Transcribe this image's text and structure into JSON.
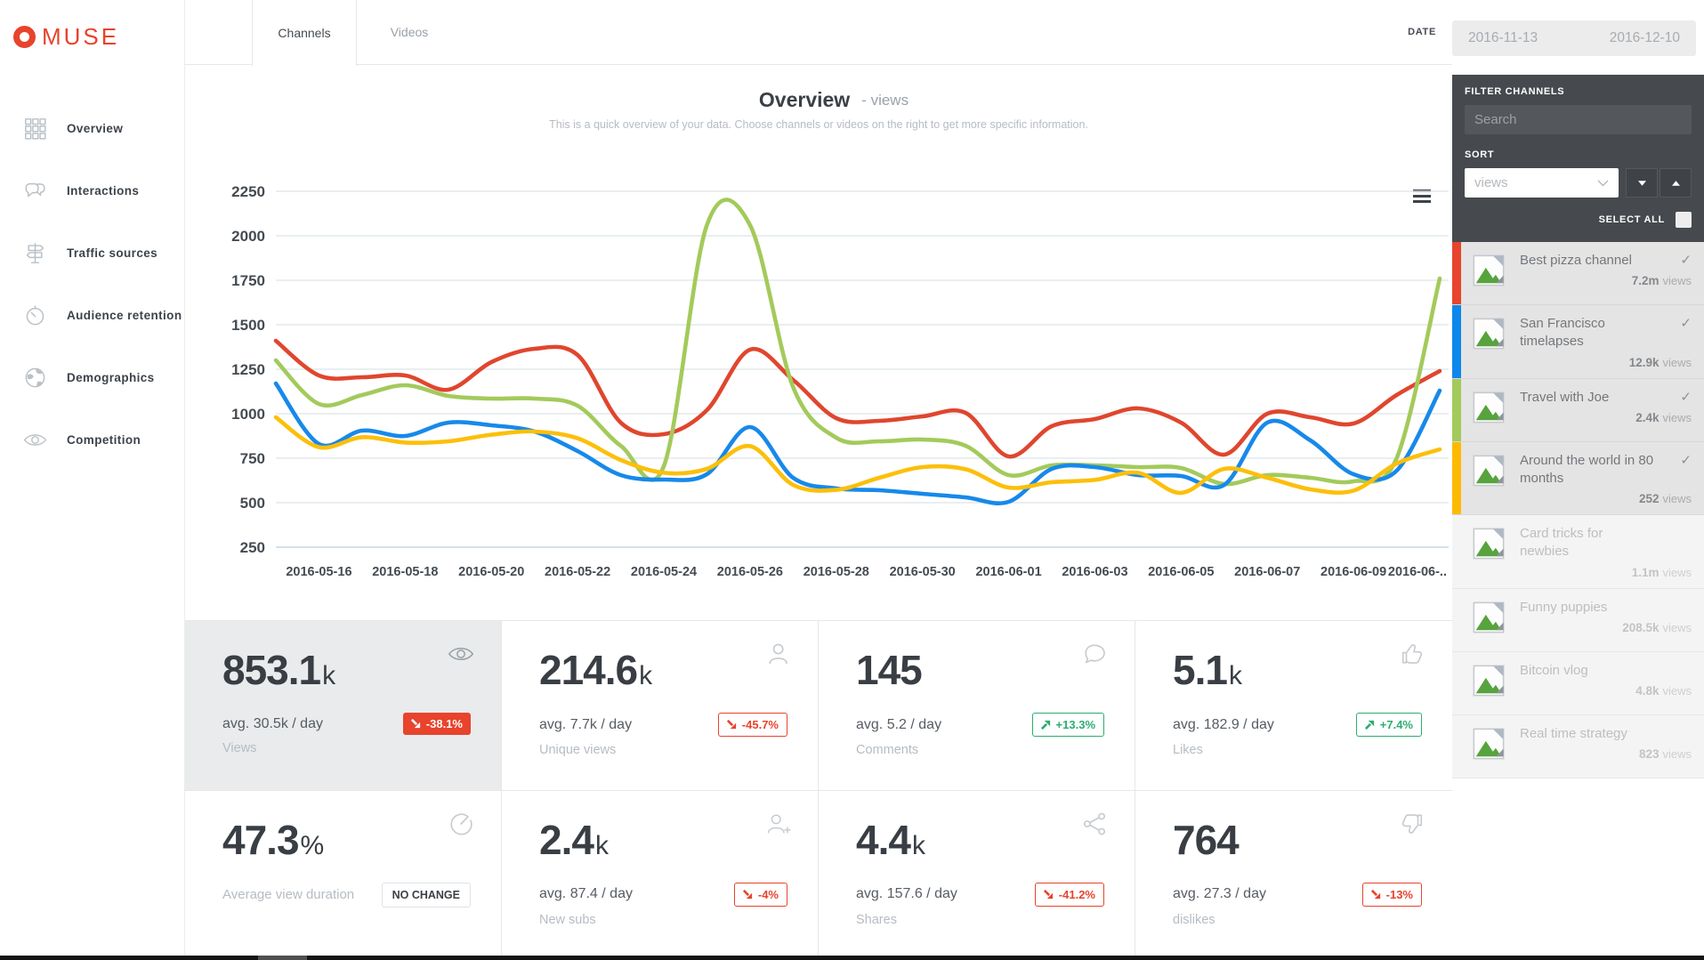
{
  "brand": {
    "name": "MUSE",
    "color": "#e8432d"
  },
  "sidebar": {
    "items": [
      {
        "label": "Overview",
        "icon": "grid-icon"
      },
      {
        "label": "Interactions",
        "icon": "chat-icon"
      },
      {
        "label": "Traffic sources",
        "icon": "signpost-icon"
      },
      {
        "label": "Audience retention",
        "icon": "timer-icon"
      },
      {
        "label": "Demographics",
        "icon": "globe-icon"
      },
      {
        "label": "Competition",
        "icon": "eye-icon"
      }
    ]
  },
  "topbar": {
    "tabs": [
      {
        "label": "Channels",
        "active": true
      },
      {
        "label": "Videos",
        "active": false
      }
    ],
    "date_label": "DATE"
  },
  "date_range": {
    "start": "2016-11-13",
    "end": "2016-12-10"
  },
  "filter_panel": {
    "title": "FILTER CHANNELS",
    "search_placeholder": "Search",
    "search_value": "",
    "sort_label": "SORT",
    "sort_value": "views",
    "select_all": "SELECT ALL"
  },
  "channels": [
    {
      "name": "Best pizza channel",
      "views": "7.2m",
      "unit": "views",
      "color": "#e8432d",
      "selected": true
    },
    {
      "name": "San Francisco timelapses",
      "views": "12.9k",
      "unit": "views",
      "color": "#0d87ec",
      "selected": true
    },
    {
      "name": "Travel with Joe",
      "views": "2.4k",
      "unit": "views",
      "color": "#a3ca5b",
      "selected": true
    },
    {
      "name": "Around the world in 80 months",
      "views": "252",
      "unit": "views",
      "color": "#fdba02",
      "selected": true
    },
    {
      "name": "Card tricks for newbies",
      "views": "1.1m",
      "unit": "views",
      "color": null,
      "selected": false
    },
    {
      "name": "Funny puppies",
      "views": "208.5k",
      "unit": "views",
      "color": null,
      "selected": false
    },
    {
      "name": "Bitcoin vlog",
      "views": "4.8k",
      "unit": "views",
      "color": null,
      "selected": false
    },
    {
      "name": "Real time strategy",
      "views": "823",
      "unit": "views",
      "color": null,
      "selected": false
    }
  ],
  "overview": {
    "title": "Overview",
    "metric": "- views",
    "description": "This is a quick overview of your data. Choose channels or videos on the right to get more specific information."
  },
  "chart_data": {
    "type": "line",
    "title": "Overview - views",
    "xlabel": "",
    "ylabel": "",
    "ylim": [
      250,
      2250
    ],
    "yticks": [
      2250,
      2000,
      1750,
      1500,
      1250,
      1000,
      750,
      500,
      250
    ],
    "grid": true,
    "legend": "none",
    "x": [
      "2016-05-15",
      "2016-05-16",
      "2016-05-17",
      "2016-05-18",
      "2016-05-19",
      "2016-05-20",
      "2016-05-21",
      "2016-05-22",
      "2016-05-23",
      "2016-05-24",
      "2016-05-25",
      "2016-05-26",
      "2016-05-27",
      "2016-05-28",
      "2016-05-29",
      "2016-05-30",
      "2016-05-31",
      "2016-06-01",
      "2016-06-02",
      "2016-06-03",
      "2016-06-04",
      "2016-06-05",
      "2016-06-06",
      "2016-06-07",
      "2016-06-08",
      "2016-06-09",
      "2016-06-10",
      "2016-06-11"
    ],
    "x_tick_labels": [
      "2016-05-16",
      "2016-05-18",
      "2016-05-20",
      "2016-05-22",
      "2016-05-24",
      "2016-05-26",
      "2016-05-28",
      "2016-05-30",
      "2016-06-01",
      "2016-06-03",
      "2016-06-05",
      "2016-06-07",
      "2016-06-09",
      "2016-06-.."
    ],
    "series": [
      {
        "name": "Best pizza channel",
        "color": "#e0462e",
        "values": [
          1410,
          1215,
          1205,
          1215,
          1135,
          1290,
          1365,
          1330,
          950,
          885,
          1020,
          1360,
          1190,
          975,
          960,
          985,
          1005,
          760,
          930,
          970,
          1030,
          950,
          770,
          1000,
          980,
          945,
          1105,
          1240
        ]
      },
      {
        "name": "Travel with Joe",
        "color": "#a3ca5b",
        "values": [
          1300,
          1055,
          1105,
          1160,
          1100,
          1085,
          1085,
          1045,
          820,
          705,
          2060,
          2060,
          1150,
          865,
          845,
          855,
          820,
          655,
          710,
          710,
          700,
          695,
          605,
          655,
          640,
          620,
          750,
          1760
        ]
      },
      {
        "name": "San Francisco timelapses",
        "color": "#1789ea",
        "values": [
          1170,
          830,
          905,
          875,
          950,
          935,
          900,
          790,
          655,
          630,
          660,
          925,
          640,
          580,
          570,
          550,
          530,
          505,
          690,
          700,
          655,
          650,
          600,
          950,
          850,
          660,
          680,
          1130
        ]
      },
      {
        "name": "Around the world in 80 months",
        "color": "#fcbf0a",
        "values": [
          980,
          812,
          868,
          838,
          845,
          882,
          900,
          862,
          740,
          668,
          690,
          818,
          600,
          572,
          640,
          700,
          688,
          585,
          615,
          628,
          668,
          555,
          690,
          640,
          575,
          568,
          720,
          800
        ]
      }
    ]
  },
  "stats": [
    {
      "value": "853.1",
      "suffix": "k",
      "avg": "avg. 30.5k / day",
      "label": "Views",
      "change": "-38.1%",
      "trend": "down",
      "badge_style": "solid",
      "icon": "eye-icon",
      "highlighted": true
    },
    {
      "value": "214.6",
      "suffix": "k",
      "avg": "avg. 7.7k / day",
      "label": "Unique views",
      "change": "-45.7%",
      "trend": "down",
      "badge_style": "outline",
      "icon": "user-icon",
      "highlighted": false
    },
    {
      "value": "145",
      "suffix": "",
      "avg": "avg. 5.2 / day",
      "label": "Comments",
      "change": "+13.3%",
      "trend": "up",
      "badge_style": "outline",
      "icon": "comment-icon",
      "highlighted": false
    },
    {
      "value": "5.1",
      "suffix": "k",
      "avg": "avg. 182.9 / day",
      "label": "Likes",
      "change": "+7.4%",
      "trend": "up",
      "badge_style": "outline",
      "icon": "thumb-up-icon",
      "highlighted": false
    },
    {
      "value": "47.3",
      "suffix": "%",
      "avg": "",
      "label": "Average view duration",
      "change": "NO CHANGE",
      "trend": "none",
      "badge_style": "neutral",
      "icon": "gauge-icon",
      "highlighted": false
    },
    {
      "value": "2.4",
      "suffix": "k",
      "avg": "avg. 87.4 / day",
      "label": "New subs",
      "change": "-4%",
      "trend": "down",
      "badge_style": "outline",
      "icon": "user-plus-icon",
      "highlighted": false
    },
    {
      "value": "4.4",
      "suffix": "k",
      "avg": "avg. 157.6 / day",
      "label": "Shares",
      "change": "-41.2%",
      "trend": "down",
      "badge_style": "outline",
      "icon": "share-icon",
      "highlighted": false
    },
    {
      "value": "764",
      "suffix": "",
      "avg": "avg. 27.3 / day",
      "label": "dislikes",
      "change": "-13%",
      "trend": "down",
      "badge_style": "outline",
      "icon": "thumb-down-icon",
      "highlighted": false
    }
  ]
}
